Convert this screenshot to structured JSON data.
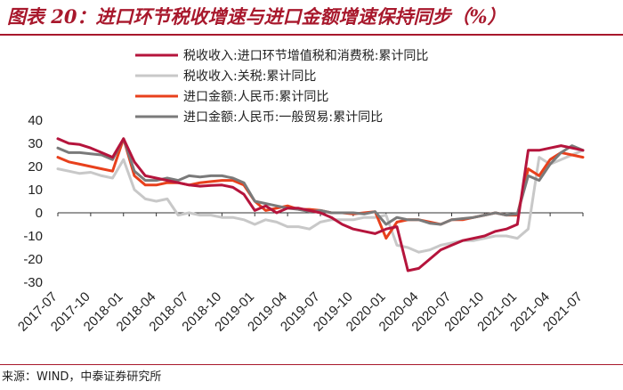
{
  "header": {
    "title": "图表 20：进口环节税收增速与进口金额增速保持同步（%）"
  },
  "footer": {
    "source": "来源：WIND，中泰证券研究所"
  },
  "colors": {
    "accent": "#a8182c",
    "series": [
      "#b5143c",
      "#c8c8c8",
      "#e8401c",
      "#7a7a7a"
    ]
  },
  "chart_data": {
    "type": "line",
    "title": "进口环节税收增速与进口金额增速保持同步（%）",
    "xlabel": "",
    "ylabel": "",
    "ylim": [
      -30,
      40
    ],
    "yticks": [
      -30,
      -20,
      -10,
      0,
      10,
      20,
      30,
      40
    ],
    "grid": false,
    "legend_position": "top-center",
    "x": [
      "2017-07",
      "2017-08",
      "2017-09",
      "2017-10",
      "2017-11",
      "2017-12",
      "2018-01",
      "2018-02",
      "2018-03",
      "2018-04",
      "2018-05",
      "2018-06",
      "2018-07",
      "2018-08",
      "2018-09",
      "2018-10",
      "2018-11",
      "2018-12",
      "2019-01",
      "2019-02",
      "2019-03",
      "2019-04",
      "2019-05",
      "2019-06",
      "2019-07",
      "2019-08",
      "2019-09",
      "2019-10",
      "2019-11",
      "2019-12",
      "2020-01",
      "2020-02",
      "2020-03",
      "2020-04",
      "2020-05",
      "2020-06",
      "2020-07",
      "2020-08",
      "2020-09",
      "2020-10",
      "2020-11",
      "2020-12",
      "2021-01",
      "2021-02",
      "2021-03",
      "2021-04",
      "2021-05",
      "2021-06",
      "2021-07"
    ],
    "xticks": [
      "2017-07",
      "2017-10",
      "2018-01",
      "2018-04",
      "2018-07",
      "2018-10",
      "2019-01",
      "2019-04",
      "2019-07",
      "2019-10",
      "2020-01",
      "2020-04",
      "2020-07",
      "2020-10",
      "2021-01",
      "2021-04",
      "2021-07"
    ],
    "series": [
      {
        "name": "税收收入:进口环节增值税和消费税:累计同比",
        "values": [
          32,
          30,
          29.5,
          28,
          26,
          24,
          32,
          22,
          16,
          15,
          14,
          13,
          12,
          11.5,
          11.8,
          12,
          11,
          8,
          1,
          3,
          0,
          2,
          2,
          1,
          0,
          -2,
          -5,
          -7,
          -8,
          -9,
          -7,
          -6,
          -25,
          -24,
          -20,
          -16,
          -14,
          -12,
          -11,
          -10,
          -8,
          -7,
          -5,
          27,
          27,
          28,
          29,
          28,
          27
        ]
      },
      {
        "name": "税收收入:关税:累计同比",
        "values": [
          19,
          18,
          17,
          17.5,
          16,
          15,
          23,
          10,
          6,
          5,
          6,
          -1,
          0,
          -1,
          -1,
          -2,
          -2,
          -3,
          -5,
          -3,
          -4,
          -6,
          -6,
          -7,
          -4,
          -3,
          -3,
          -3,
          -2,
          -2,
          -1,
          -14,
          -15,
          -17,
          -16,
          -14,
          -13,
          -12,
          -12,
          -11,
          -10,
          -10,
          -11,
          -7,
          24,
          21,
          23,
          25,
          27
        ]
      },
      {
        "name": "进口金额:人民币:累计同比",
        "values": [
          24,
          22,
          21,
          20,
          19,
          18,
          32,
          16,
          12,
          12,
          13,
          13,
          12,
          13,
          13.5,
          14,
          14,
          12,
          5,
          1,
          2,
          3,
          1.5,
          1.5,
          1,
          0,
          0,
          -0.5,
          0,
          0.5,
          -11,
          -4,
          -3,
          -3,
          -4,
          -5,
          -3,
          -3,
          -2,
          -1,
          0,
          -1,
          -1,
          19,
          16,
          23,
          26,
          25,
          24
        ]
      },
      {
        "name": "进口金额:人民币:一般贸易:累计同比",
        "values": [
          28,
          26,
          26,
          25.5,
          25,
          23,
          32,
          18,
          14,
          14,
          15,
          14,
          16,
          15.5,
          16,
          16,
          15,
          13,
          5,
          4,
          3,
          2,
          1.5,
          0.5,
          1,
          0,
          0,
          0,
          -0.5,
          0.5,
          -5,
          -2,
          -3,
          -3,
          -4.5,
          -5,
          -3,
          -2.5,
          -2,
          -1,
          0,
          -1,
          -0.5,
          16,
          14,
          21,
          26,
          29,
          27
        ]
      }
    ]
  }
}
